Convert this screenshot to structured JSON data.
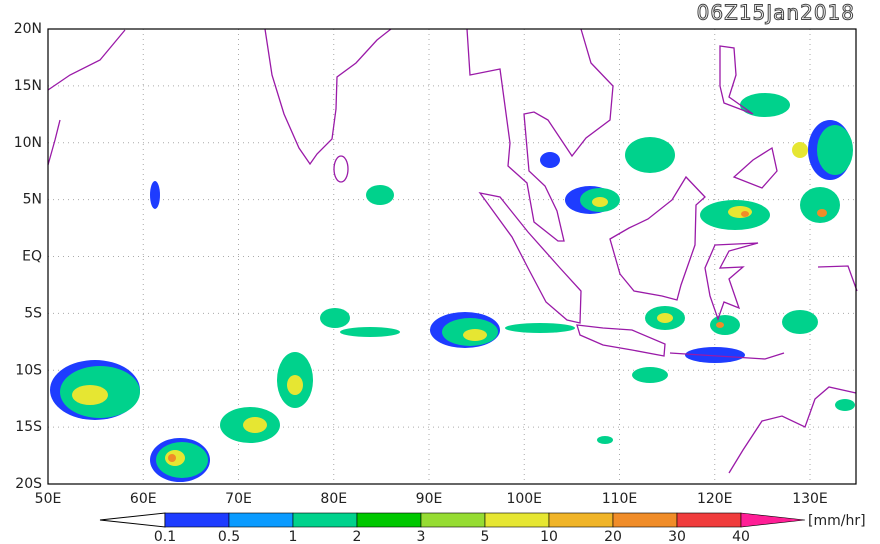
{
  "header": {
    "title": "06Z15Jan2018"
  },
  "map": {
    "lat_labels": [
      "20N",
      "15N",
      "10N",
      "5N",
      "EQ",
      "5S",
      "10S",
      "15S",
      "20S"
    ],
    "lon_labels": [
      "50E",
      "60E",
      "70E",
      "80E",
      "90E",
      "100E",
      "110E",
      "120E",
      "130E"
    ]
  },
  "colorbar": {
    "labels": [
      0.1,
      0.5,
      1,
      2,
      3,
      5,
      10,
      20,
      30,
      40
    ],
    "colors": [
      "#1e3cff",
      "#0a9bff",
      "#00d28c",
      "#00c800",
      "#96dc32",
      "#e6e632",
      "#f0b428",
      "#f08c28",
      "#f03c3c"
    ],
    "over_color": "#ff1e96",
    "unit": "[mm/hr]"
  }
}
